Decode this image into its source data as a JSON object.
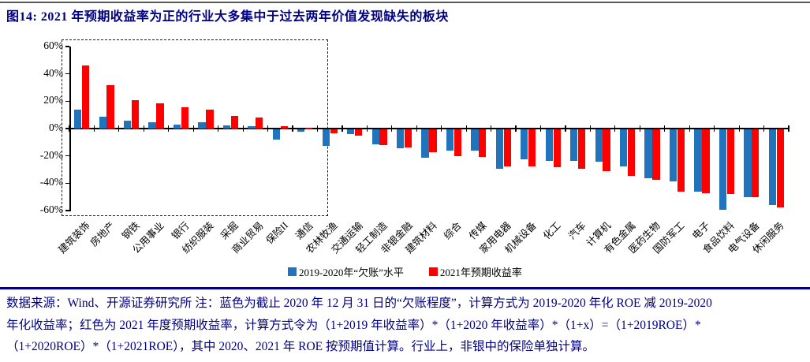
{
  "title": "图14:  2021 年预期收益率为正的行业大多集中于过去两年价值发现缺失的板块",
  "colors": {
    "navy": "#000080",
    "bar_blue": "#2173BC",
    "bar_red": "#FE0000",
    "axis_black": "#000000",
    "top_rule_grey": "#58595B"
  },
  "chart_data": {
    "type": "bar",
    "categories": [
      "建筑装饰",
      "房地产",
      "钢铁",
      "公用事业",
      "银行",
      "纺织服装",
      "采掘",
      "商业贸易",
      "保险II",
      "通信",
      "农林牧渔",
      "交通运输",
      "轻工制造",
      "非银金融",
      "建筑材料",
      "综合",
      "传媒",
      "家用电器",
      "机械设备",
      "化工",
      "汽车",
      "计算机",
      "有色金属",
      "医药生物",
      "国防军工",
      "电子",
      "食品饮料",
      "电气设备",
      "休闲服务"
    ],
    "series": [
      {
        "name": "2019-2020年“欠账”水平",
        "color": "#2173BC",
        "values": [
          14,
          8.5,
          6,
          4.5,
          3,
          4.5,
          2.5,
          2,
          -7.5,
          -2,
          -12.5,
          -3.5,
          -11,
          -14,
          -21,
          -16,
          -15.5,
          -29,
          -22,
          -23,
          -23,
          -24,
          -27.5,
          -36,
          -38,
          -46,
          -59,
          -50,
          -55.5
        ]
      },
      {
        "name": "2021年预期收益率",
        "color": "#FE0000",
        "values": [
          46,
          32,
          21,
          18.5,
          15.5,
          14,
          9,
          8,
          1.5,
          0.5,
          -3,
          -4.5,
          -11.5,
          -13.5,
          -17,
          -19.5,
          -20.5,
          -27,
          -27,
          -28,
          -29,
          -31,
          -34,
          -37,
          -46,
          -47,
          -47.5,
          -50,
          -57
        ]
      }
    ],
    "ylim": [
      -60,
      60
    ],
    "yticks": [
      60,
      40,
      20,
      0,
      -20,
      -40,
      -60
    ],
    "ytick_suffix": "%",
    "grid": false,
    "legend_position": "bottom-center",
    "x_label_rotation_deg": -45,
    "highlight_box": {
      "style": "black-dashed",
      "from_category": "建筑装饰",
      "to_category": "通信"
    }
  },
  "footnote": {
    "line1": "数据来源：Wind、开源证券研究所  注：蓝色为截止 2020 年 12 月 31 日的“欠账程度”，计算方式为 2019-2020 年化 ROE 减 2019-2020",
    "line2": "年化收益率；红色为 2021 年度预期收益率，计算方式令为（1+2019 年收益率）*（1+2020 年收益率）*（1+x）=（1+2019ROE）*",
    "line3": "（1+2020ROE）*（1+2021ROE），其中 2020、2021 年 ROE 按预期值计算。行业上，非银中的保险单独计算。"
  }
}
